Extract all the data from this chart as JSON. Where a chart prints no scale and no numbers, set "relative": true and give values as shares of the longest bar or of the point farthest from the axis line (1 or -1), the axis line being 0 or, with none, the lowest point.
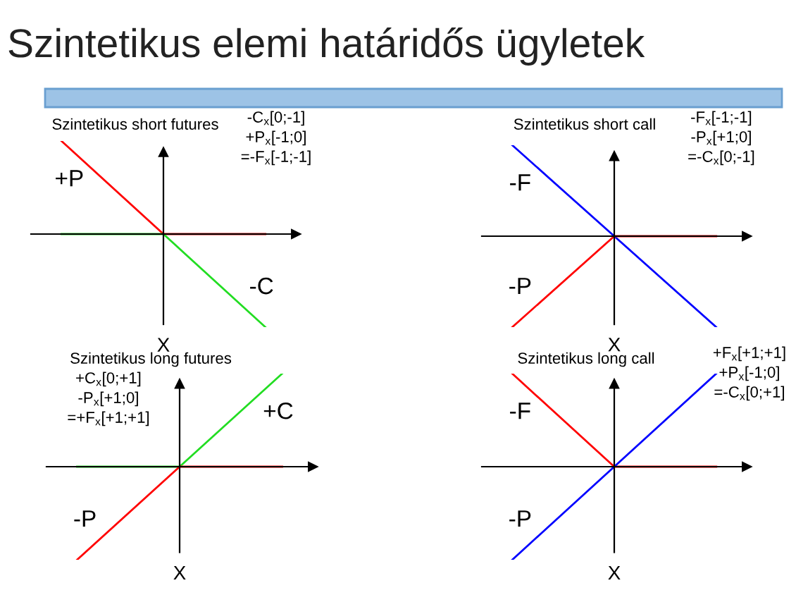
{
  "chart_data": [
    {
      "type": "other",
      "title": "Szintetikus elemi határidős ügyletek"
    },
    {
      "type": "line",
      "relative": true,
      "title": "Szintetikus short futures",
      "xlabel": "X",
      "categories": [
        null,
        null,
        null
      ],
      "annotations": [
        "-C$_{x}$[0;-1]",
        "+P$_{x}$[-1;0]",
        "=-F$_{x}$[-1;-1]"
      ],
      "series": [
        {
          "name": "+P",
          "color": "#ff0000",
          "values": [
            1,
            0,
            0
          ]
        },
        {
          "name": "-C",
          "color": "#22dd22",
          "values": [
            0,
            0,
            -1
          ]
        }
      ]
    },
    {
      "type": "line",
      "relative": true,
      "title": "Szintetikus short call",
      "xlabel": "X",
      "categories": [
        null,
        null,
        null
      ],
      "annotations": [
        "-F$_{x}$[-1;-1]",
        "-P$_{x}$[+1;0]",
        "=-C$_{x}$[0;-1]"
      ],
      "series": [
        {
          "name": "-F",
          "color": "#0000ff",
          "values": [
            1,
            0,
            -1
          ]
        },
        {
          "name": "-P",
          "color": "#ff0000",
          "values": [
            -1,
            0,
            0
          ]
        }
      ]
    },
    {
      "type": "line",
      "relative": true,
      "title": "Szintetikus long futures",
      "xlabel": "X",
      "categories": [
        null,
        null,
        null
      ],
      "annotations": [
        "+C$_{x}$[0;+1]",
        "-P$_{x}$[+1;0]",
        "=+F$_{x}$[+1;+1]"
      ],
      "series": [
        {
          "name": "+C",
          "color": "#22dd22",
          "values": [
            0,
            0,
            1
          ]
        },
        {
          "name": "-P",
          "color": "#ff0000",
          "values": [
            -1,
            0,
            0
          ]
        }
      ]
    },
    {
      "type": "line",
      "relative": true,
      "title": "Szintetikus long call",
      "xlabel": "X",
      "categories": [
        null,
        null,
        null
      ],
      "annotations": [
        "+F$_{x}$[+1;+1]",
        "+P$_{x}$[-1;0]",
        "=-C$_{x}$[0;+1]"
      ],
      "series": [
        {
          "name": "-F",
          "color": "#ff0000",
          "values": [
            1,
            0,
            0
          ]
        },
        {
          "name": "-P",
          "color": "#0000ff",
          "values": [
            -1,
            0,
            1
          ]
        }
      ]
    }
  ]
}
